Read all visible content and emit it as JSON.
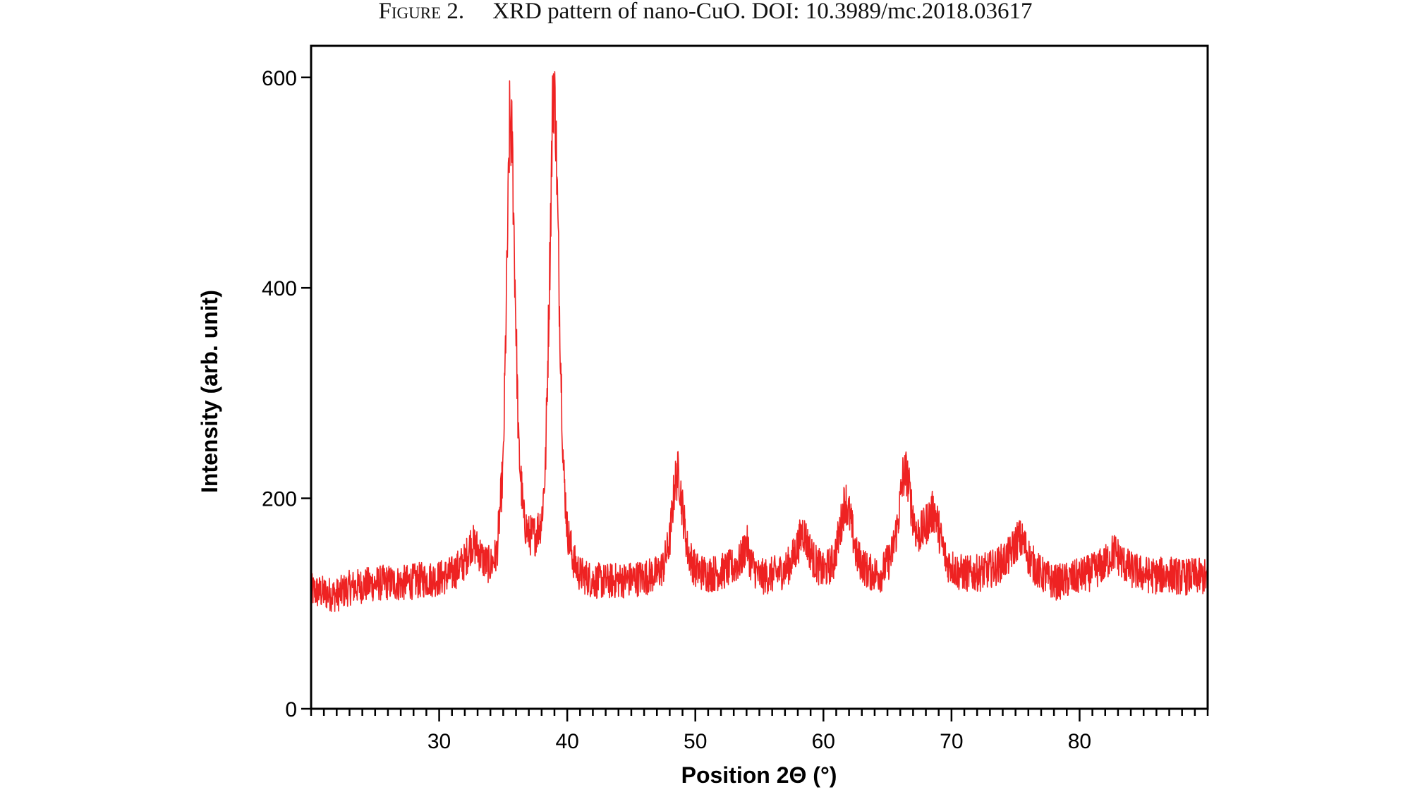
{
  "caption": {
    "label": "Figure 2.",
    "text": "XRD pattern of nano-CuO. DOI: 10.3989/mc.2018.03617"
  },
  "chart_data": {
    "type": "line",
    "title": "",
    "xlabel": "Position 2Θ (°)",
    "ylabel": "Intensity (arb. unit)",
    "xlim": [
      20,
      90
    ],
    "ylim": [
      0,
      630
    ],
    "xticks": [
      30,
      40,
      50,
      60,
      70,
      80
    ],
    "yticks": [
      0,
      200,
      400,
      600
    ],
    "grid": false,
    "legend": "none",
    "series": [
      {
        "color": "#ee2222",
        "points": [
          [
            20.0,
            112
          ],
          [
            21.0,
            110
          ],
          [
            22.0,
            108
          ],
          [
            23.0,
            115
          ],
          [
            24.0,
            117
          ],
          [
            25.0,
            119
          ],
          [
            26.0,
            120
          ],
          [
            27.0,
            119
          ],
          [
            28.0,
            121
          ],
          [
            29.0,
            123
          ],
          [
            30.0,
            124
          ],
          [
            31.0,
            128
          ],
          [
            32.0,
            140
          ],
          [
            32.5,
            158
          ],
          [
            33.0,
            152
          ],
          [
            33.5,
            140
          ],
          [
            34.0,
            136
          ],
          [
            34.5,
            147
          ],
          [
            35.0,
            230
          ],
          [
            35.3,
            420
          ],
          [
            35.5,
            555
          ],
          [
            35.7,
            540
          ],
          [
            35.9,
            420
          ],
          [
            36.2,
            250
          ],
          [
            36.6,
            180
          ],
          [
            37.0,
            165
          ],
          [
            37.5,
            165
          ],
          [
            38.0,
            180
          ],
          [
            38.3,
            230
          ],
          [
            38.6,
            400
          ],
          [
            38.9,
            600
          ],
          [
            39.1,
            560
          ],
          [
            39.4,
            380
          ],
          [
            39.7,
            230
          ],
          [
            40.0,
            170
          ],
          [
            40.5,
            140
          ],
          [
            41.0,
            128
          ],
          [
            42.0,
            122
          ],
          [
            43.0,
            121
          ],
          [
            44.0,
            122
          ],
          [
            45.0,
            123
          ],
          [
            46.0,
            125
          ],
          [
            47.0,
            128
          ],
          [
            47.5,
            135
          ],
          [
            48.0,
            160
          ],
          [
            48.4,
            215
          ],
          [
            48.7,
            225
          ],
          [
            49.0,
            190
          ],
          [
            49.4,
            150
          ],
          [
            50.0,
            132
          ],
          [
            51.0,
            128
          ],
          [
            52.0,
            130
          ],
          [
            53.0,
            135
          ],
          [
            53.5,
            140
          ],
          [
            53.8,
            150
          ],
          [
            54.0,
            158
          ],
          [
            54.3,
            140
          ],
          [
            55.0,
            125
          ],
          [
            56.0,
            127
          ],
          [
            57.0,
            132
          ],
          [
            57.5,
            140
          ],
          [
            58.0,
            155
          ],
          [
            58.4,
            170
          ],
          [
            58.8,
            155
          ],
          [
            59.3,
            140
          ],
          [
            60.0,
            130
          ],
          [
            60.8,
            140
          ],
          [
            61.3,
            170
          ],
          [
            61.7,
            200
          ],
          [
            62.1,
            180
          ],
          [
            62.6,
            145
          ],
          [
            63.5,
            130
          ],
          [
            64.5,
            128
          ],
          [
            65.3,
            145
          ],
          [
            65.8,
            175
          ],
          [
            66.2,
            220
          ],
          [
            66.5,
            225
          ],
          [
            66.9,
            190
          ],
          [
            67.3,
            165
          ],
          [
            67.8,
            170
          ],
          [
            68.4,
            185
          ],
          [
            68.7,
            188
          ],
          [
            69.1,
            165
          ],
          [
            69.6,
            140
          ],
          [
            70.5,
            130
          ],
          [
            71.5,
            128
          ],
          [
            72.5,
            130
          ],
          [
            73.5,
            135
          ],
          [
            74.5,
            145
          ],
          [
            75.2,
            162
          ],
          [
            75.6,
            158
          ],
          [
            76.2,
            140
          ],
          [
            77.0,
            128
          ],
          [
            78.0,
            120
          ],
          [
            79.0,
            122
          ],
          [
            80.0,
            126
          ],
          [
            81.0,
            130
          ],
          [
            82.0,
            138
          ],
          [
            82.7,
            150
          ],
          [
            83.3,
            140
          ],
          [
            84.0,
            132
          ],
          [
            85.0,
            128
          ],
          [
            86.0,
            126
          ],
          [
            87.0,
            128
          ],
          [
            88.0,
            125
          ],
          [
            89.0,
            126
          ],
          [
            90.0,
            125
          ]
        ]
      }
    ]
  }
}
